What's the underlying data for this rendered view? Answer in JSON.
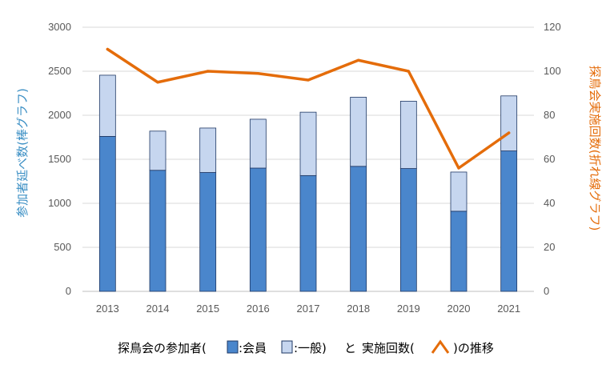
{
  "chart_data": {
    "type": "bar",
    "categories": [
      "2013",
      "2014",
      "2015",
      "2016",
      "2017",
      "2018",
      "2019",
      "2020",
      "2021"
    ],
    "series": [
      {
        "name": "会員",
        "kind": "stacked-bar",
        "axis": "left",
        "values": [
          1760,
          1375,
          1350,
          1400,
          1315,
          1420,
          1395,
          910,
          1595
        ]
      },
      {
        "name": "一般",
        "kind": "stacked-bar",
        "axis": "left",
        "values": [
          695,
          445,
          505,
          555,
          720,
          785,
          765,
          445,
          625
        ]
      },
      {
        "name": "実施回数",
        "kind": "line",
        "axis": "right",
        "values": [
          110,
          95,
          100,
          99,
          96,
          105,
          100,
          56,
          72
        ]
      }
    ],
    "ylabel": "参加者延べ数(棒グラフ)",
    "y2label": "探鳥会実施回数(折れ線グラフ)",
    "ylim": [
      0,
      3000
    ],
    "y2lim": [
      0,
      120
    ],
    "yticks": [
      "0",
      "500",
      "1000",
      "1500",
      "2000",
      "2500",
      "3000"
    ],
    "y2ticks": [
      "0",
      "20",
      "40",
      "60",
      "80",
      "100",
      "120"
    ],
    "caption": {
      "prefix": "探鳥会の参加者(",
      "member": ":会員",
      "general": ":一般)",
      "connector": "と",
      "count": "実施回数(",
      "suffix": ")の推移"
    },
    "grid": true,
    "colors": {
      "member": "#4a86cc",
      "general": "#c6d6ef",
      "bar_edge": "#1f3864",
      "line": "#e46c0a",
      "grid": "#d9d9d9",
      "left_label": "#3b8fc4",
      "right_label": "#e46c0a"
    }
  }
}
